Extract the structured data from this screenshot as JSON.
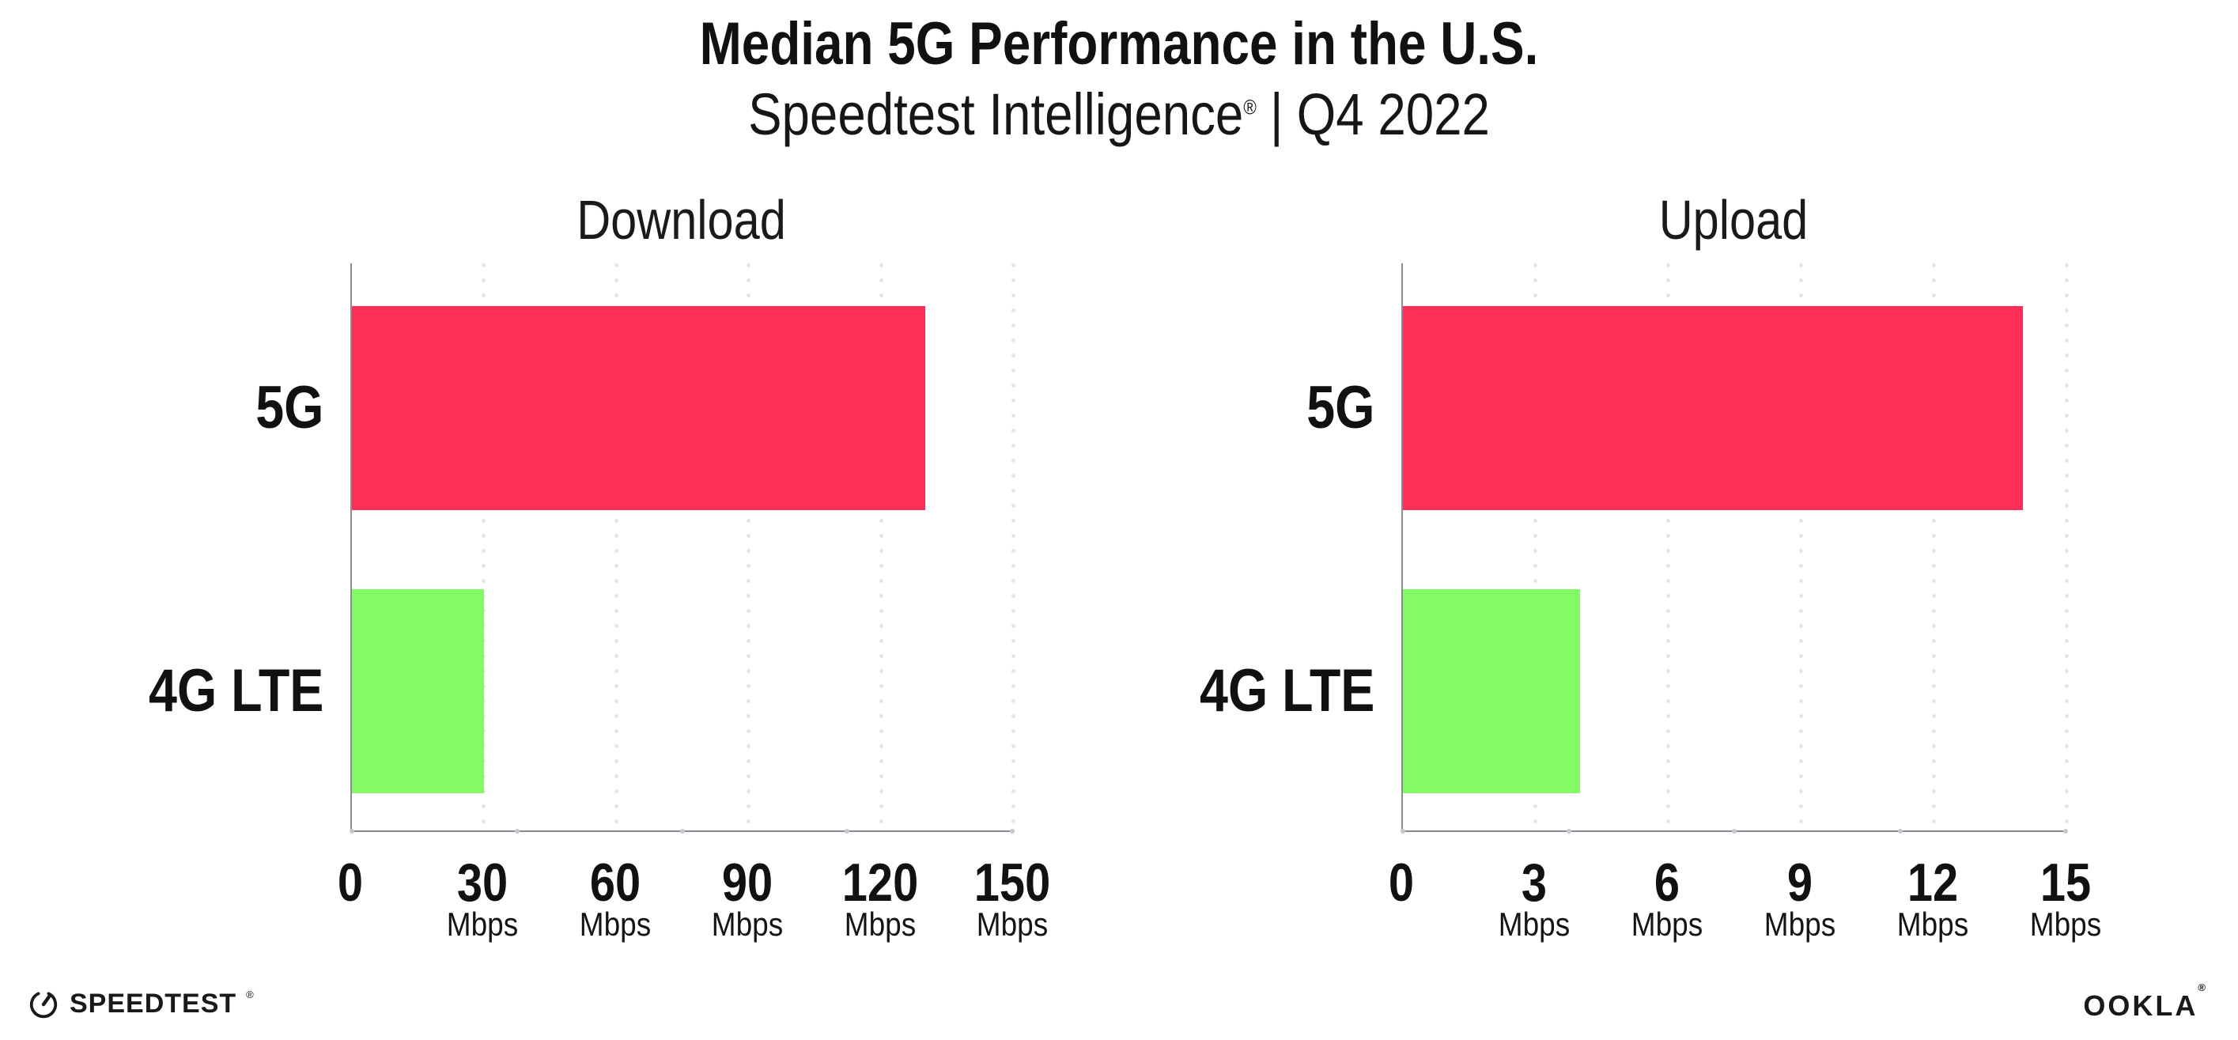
{
  "header": {
    "title": "Median 5G Performance in the U.S.",
    "subtitle": {
      "brand": "Speedtest Intelligence",
      "registered_mark": "®",
      "separator": "|",
      "period": "Q4 2022"
    }
  },
  "chart_data": [
    {
      "type": "bar",
      "orientation": "horizontal",
      "panel": "left",
      "title": "Download",
      "categories": [
        "5G",
        "4G LTE"
      ],
      "values": [
        130,
        30
      ],
      "unit": "Mbps",
      "xlim": [
        0,
        150
      ],
      "xticks": [
        0,
        30,
        60,
        90,
        120,
        150
      ],
      "grid": "dotted-vertical",
      "bar_colors": [
        "#FF2E56",
        "#84FA64"
      ]
    },
    {
      "type": "bar",
      "orientation": "horizontal",
      "panel": "right",
      "title": "Upload",
      "categories": [
        "5G",
        "4G LTE"
      ],
      "values": [
        14,
        4
      ],
      "unit": "Mbps",
      "xlim": [
        0,
        15
      ],
      "xticks": [
        0,
        3,
        6,
        9,
        12,
        15
      ],
      "grid": "dotted-vertical",
      "bar_colors": [
        "#FF2E56",
        "#84FA64"
      ]
    }
  ],
  "colors": {
    "bar_5g": "#FF2E56",
    "bar_4g_lte": "#84FA64",
    "gridline": "#E2E2EC",
    "axis_line": "#8A8A94",
    "tick_dot": "#C6C6D1",
    "text": "#111111"
  },
  "footer": {
    "speedtest_logo_text": "SPEEDTEST",
    "speedtest_registered_mark": "®",
    "ookla_logo_text": "OOKLA",
    "ookla_registered_mark": "®"
  }
}
